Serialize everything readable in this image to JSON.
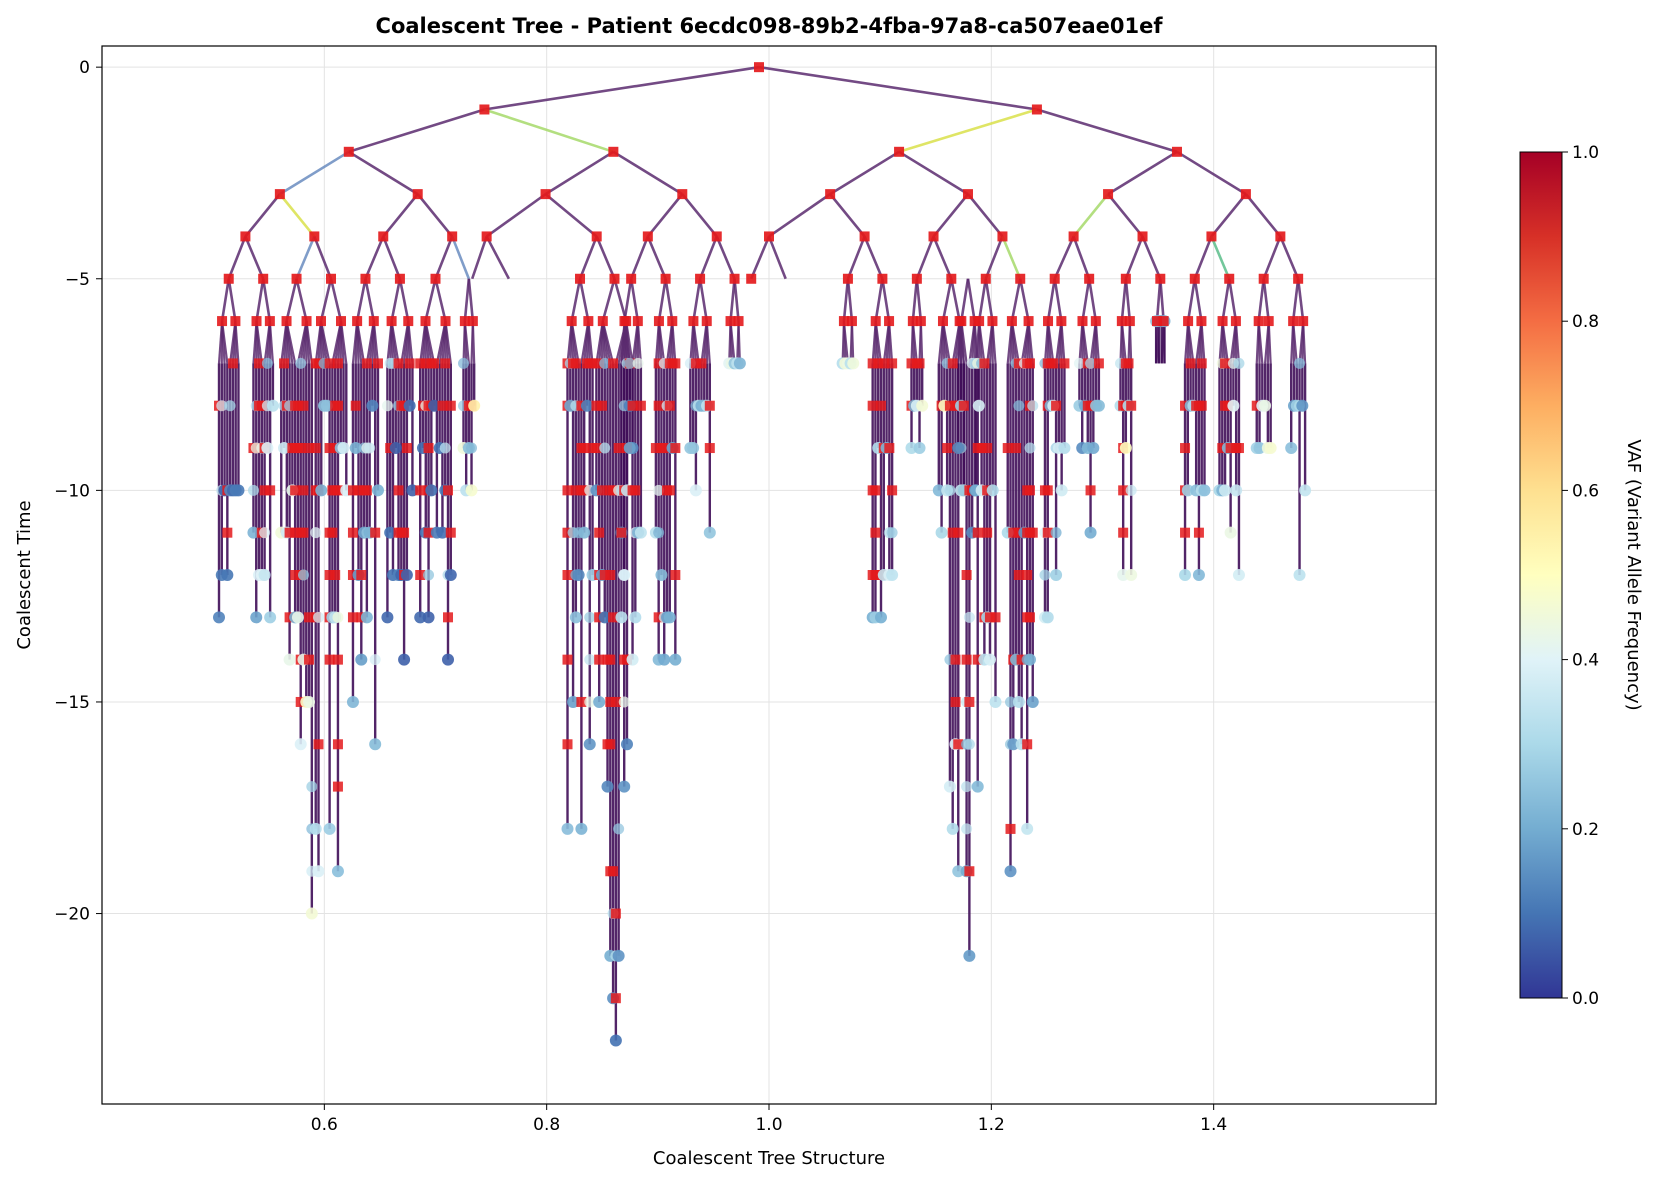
{
  "chart_data": {
    "type": "scatter",
    "title": "Coalescent Tree - Patient 6ecdc098-89b2-4fba-97a8-ca507eae01ef",
    "xlabel": "Coalescent Tree Structure",
    "ylabel": "Coalescent Time",
    "xlim": [
      0.4,
      1.6
    ],
    "ylim": [
      -24.5,
      0.5
    ],
    "x_ticks": [
      "0.6",
      "0.8",
      "1.0",
      "1.2",
      "1.4"
    ],
    "y_ticks": [
      "0",
      "−5",
      "−10",
      "−15",
      "−20"
    ],
    "grid": true,
    "colorbar": {
      "label": "VAF (Variant Allele Frequency)",
      "range": [
        0.0,
        1.0
      ],
      "ticks": [
        "0.0",
        "0.2",
        "0.4",
        "0.6",
        "0.8",
        "1.0"
      ],
      "colormap": [
        "#313695",
        "#4575b4",
        "#74add1",
        "#abd9e9",
        "#e0f3f8",
        "#ffffbf",
        "#fee090",
        "#fdae61",
        "#f46d43",
        "#d73027",
        "#a50026"
      ]
    },
    "marker_legend": {
      "internal_node": "red square (#e41a1c)",
      "leaf_node": "circle colored by VAF"
    },
    "edge_color_default": "#5b2a6e",
    "edges": [
      [
        0.991,
        0,
        0.744,
        -1,
        0.9
      ],
      [
        0.991,
        0,
        1.241,
        -1,
        0.9
      ],
      [
        0.744,
        -1,
        0.622,
        -2,
        0.9
      ],
      [
        0.744,
        -1,
        0.86,
        -2,
        0.25
      ],
      [
        1.241,
        -1,
        1.117,
        -2,
        0.35
      ],
      [
        1.241,
        -1,
        1.367,
        -2,
        0.9
      ],
      [
        0.622,
        -2,
        0.56,
        -3,
        0.45
      ],
      [
        0.622,
        -2,
        0.684,
        -3,
        0.9
      ],
      [
        0.86,
        -2,
        0.799,
        -3,
        0.9
      ],
      [
        0.86,
        -2,
        0.922,
        -3,
        0.9
      ],
      [
        1.117,
        -2,
        1.055,
        -3,
        0.9
      ],
      [
        1.117,
        -2,
        1.179,
        -3,
        0.9
      ],
      [
        1.367,
        -2,
        1.305,
        -3,
        0.9
      ],
      [
        1.367,
        -2,
        1.429,
        -3,
        0.9
      ],
      [
        0.56,
        -3,
        0.529,
        -4,
        0.9
      ],
      [
        0.56,
        -3,
        0.591,
        -4,
        0.8
      ],
      [
        0.684,
        -3,
        0.653,
        -4,
        0.9
      ],
      [
        0.684,
        -3,
        0.715,
        -4,
        0.9
      ],
      [
        0.799,
        -3,
        0.746,
        -4,
        0.9
      ],
      [
        0.799,
        -3,
        0.845,
        -4,
        0.9
      ],
      [
        0.922,
        -3,
        0.891,
        -4,
        0.9
      ],
      [
        0.922,
        -3,
        0.953,
        -4,
        0.9
      ],
      [
        1.055,
        -3,
        1.0,
        -4,
        0.9
      ],
      [
        1.055,
        -3,
        1.086,
        -4,
        0.9
      ],
      [
        1.179,
        -3,
        1.148,
        -4,
        0.9
      ],
      [
        1.179,
        -3,
        1.21,
        -4,
        0.9
      ],
      [
        1.305,
        -3,
        1.274,
        -4,
        0.25
      ],
      [
        1.305,
        -3,
        1.336,
        -4,
        0.9
      ],
      [
        1.429,
        -3,
        1.398,
        -4,
        0.9
      ],
      [
        1.429,
        -3,
        1.46,
        -4,
        0.9
      ],
      [
        0.529,
        -4,
        0.514,
        -5,
        0.9
      ],
      [
        0.529,
        -4,
        0.545,
        -5,
        0.9
      ],
      [
        0.591,
        -4,
        0.575,
        -5,
        0.45
      ],
      [
        0.591,
        -4,
        0.606,
        -5,
        0.9
      ],
      [
        0.653,
        -4,
        0.637,
        -5,
        0.9
      ],
      [
        0.653,
        -4,
        0.668,
        -5,
        0.9
      ],
      [
        0.715,
        -4,
        0.7,
        -5,
        0.9
      ],
      [
        0.715,
        -4,
        0.73,
        -5,
        0.45
      ],
      [
        0.746,
        -4,
        0.733,
        -5,
        0.9
      ],
      [
        0.746,
        -4,
        0.766,
        -5,
        0.9
      ],
      [
        0.845,
        -4,
        0.83,
        -5,
        0.9
      ],
      [
        0.845,
        -4,
        0.861,
        -5,
        0.9
      ],
      [
        0.891,
        -4,
        0.876,
        -5,
        0.9
      ],
      [
        0.891,
        -4,
        0.907,
        -5,
        0.9
      ],
      [
        0.953,
        -4,
        0.938,
        -5,
        0.9
      ],
      [
        0.953,
        -4,
        0.969,
        -5,
        0.9
      ],
      [
        1.0,
        -4,
        0.984,
        -5,
        0.9
      ],
      [
        1.0,
        -4,
        1.015,
        -5,
        0.9
      ],
      [
        1.086,
        -4,
        1.071,
        -5,
        0.9
      ],
      [
        1.086,
        -4,
        1.102,
        -5,
        0.9
      ],
      [
        1.148,
        -4,
        1.133,
        -5,
        0.9
      ],
      [
        1.148,
        -4,
        1.164,
        -5,
        0.9
      ],
      [
        1.21,
        -4,
        1.195,
        -5,
        0.9
      ],
      [
        1.21,
        -4,
        1.226,
        -5,
        0.25
      ],
      [
        1.274,
        -4,
        1.257,
        -5,
        0.9
      ],
      [
        1.274,
        -4,
        1.288,
        -5,
        0.9
      ],
      [
        1.336,
        -4,
        1.321,
        -5,
        0.9
      ],
      [
        1.336,
        -4,
        1.352,
        -5,
        0.9
      ],
      [
        1.398,
        -4,
        1.383,
        -5,
        0.9
      ],
      [
        1.398,
        -4,
        1.414,
        -5,
        0.6
      ],
      [
        1.46,
        -4,
        1.445,
        -5,
        0.9
      ],
      [
        1.46,
        -4,
        1.476,
        -5,
        0.9
      ]
    ],
    "internal_nodes": [
      [
        0.991,
        0
      ],
      [
        0.744,
        -1
      ],
      [
        1.241,
        -1
      ],
      [
        0.622,
        -2
      ],
      [
        0.86,
        -2
      ],
      [
        1.117,
        -2
      ],
      [
        1.367,
        -2
      ],
      [
        0.56,
        -3
      ],
      [
        0.684,
        -3
      ],
      [
        0.799,
        -3
      ],
      [
        0.922,
        -3
      ],
      [
        1.055,
        -3
      ],
      [
        1.179,
        -3
      ],
      [
        1.305,
        -3
      ],
      [
        1.429,
        -3
      ],
      [
        0.529,
        -4
      ],
      [
        0.591,
        -4
      ],
      [
        0.653,
        -4
      ],
      [
        0.715,
        -4
      ],
      [
        0.746,
        -4
      ],
      [
        0.845,
        -4
      ],
      [
        0.891,
        -4
      ],
      [
        0.953,
        -4
      ],
      [
        1.0,
        -4
      ],
      [
        1.086,
        -4
      ],
      [
        1.148,
        -4
      ],
      [
        1.21,
        -4
      ],
      [
        1.274,
        -4
      ],
      [
        1.336,
        -4
      ],
      [
        1.398,
        -4
      ],
      [
        1.46,
        -4
      ],
      [
        0.514,
        -5
      ],
      [
        0.545,
        -5
      ],
      [
        0.575,
        -5
      ],
      [
        0.606,
        -5
      ],
      [
        0.637,
        -5
      ],
      [
        0.668,
        -5
      ],
      [
        0.7,
        -5
      ],
      [
        0.83,
        -5
      ],
      [
        0.861,
        -5
      ],
      [
        0.876,
        -5
      ],
      [
        0.907,
        -5
      ],
      [
        0.938,
        -5
      ],
      [
        0.969,
        -5
      ],
      [
        0.984,
        -5
      ],
      [
        1.071,
        -5
      ],
      [
        1.102,
        -5
      ],
      [
        1.133,
        -5
      ],
      [
        1.164,
        -5
      ],
      [
        1.195,
        -5
      ],
      [
        1.226,
        -5
      ],
      [
        1.257,
        -5
      ],
      [
        1.288,
        -5
      ],
      [
        1.321,
        -5
      ],
      [
        1.352,
        -5
      ],
      [
        1.383,
        -5
      ],
      [
        1.414,
        -5
      ],
      [
        1.445,
        -5
      ],
      [
        1.476,
        -5
      ]
    ],
    "subtrees": [
      {
        "x": 0.514,
        "width": 0.02,
        "depth": 13,
        "vaf": 0.1
      },
      {
        "x": 0.545,
        "width": 0.02,
        "depth": 13,
        "vaf": 0.3
      },
      {
        "x": 0.575,
        "width": 0.03,
        "depth": 21,
        "vaf": 0.35
      },
      {
        "x": 0.606,
        "width": 0.03,
        "depth": 20,
        "vaf": 0.3
      },
      {
        "x": 0.637,
        "width": 0.025,
        "depth": 16,
        "vaf": 0.2
      },
      {
        "x": 0.668,
        "width": 0.025,
        "depth": 14,
        "vaf": 0.1
      },
      {
        "x": 0.7,
        "width": 0.03,
        "depth": 14,
        "vaf": 0.08
      },
      {
        "x": 0.73,
        "width": 0.012,
        "depth": 10,
        "vaf": 0.4
      },
      {
        "x": 0.83,
        "width": 0.025,
        "depth": 18,
        "vaf": 0.2
      },
      {
        "x": 0.861,
        "width": 0.035,
        "depth": 23,
        "vaf": 0.15
      },
      {
        "x": 0.876,
        "width": 0.02,
        "depth": 14,
        "vaf": 0.3
      },
      {
        "x": 0.907,
        "width": 0.02,
        "depth": 15,
        "vaf": 0.25
      },
      {
        "x": 0.938,
        "width": 0.02,
        "depth": 12,
        "vaf": 0.3
      },
      {
        "x": 0.969,
        "width": 0.012,
        "depth": 7,
        "vaf": 0.35
      },
      {
        "x": 1.071,
        "width": 0.012,
        "depth": 7,
        "vaf": 0.4
      },
      {
        "x": 1.102,
        "width": 0.02,
        "depth": 13,
        "vaf": 0.3
      },
      {
        "x": 1.133,
        "width": 0.012,
        "depth": 9,
        "vaf": 0.35
      },
      {
        "x": 1.164,
        "width": 0.025,
        "depth": 20,
        "vaf": 0.35
      },
      {
        "x": 1.179,
        "width": 0.02,
        "depth": 24,
        "vaf": 0.2
      },
      {
        "x": 1.195,
        "width": 0.02,
        "depth": 16,
        "vaf": 0.3
      },
      {
        "x": 1.226,
        "width": 0.025,
        "depth": 20,
        "vaf": 0.25
      },
      {
        "x": 1.257,
        "width": 0.02,
        "depth": 13,
        "vaf": 0.3
      },
      {
        "x": 1.288,
        "width": 0.02,
        "depth": 11,
        "vaf": 0.2
      },
      {
        "x": 1.321,
        "width": 0.012,
        "depth": 12,
        "vaf": 0.4
      },
      {
        "x": 1.352,
        "width": 0.01,
        "depth": 6,
        "vaf": 0.25
      },
      {
        "x": 1.383,
        "width": 0.02,
        "depth": 12,
        "vaf": 0.3
      },
      {
        "x": 1.414,
        "width": 0.02,
        "depth": 12,
        "vaf": 0.35
      },
      {
        "x": 1.445,
        "width": 0.015,
        "depth": 10,
        "vaf": 0.35
      },
      {
        "x": 1.476,
        "width": 0.015,
        "depth": 12,
        "vaf": 0.25
      }
    ]
  }
}
